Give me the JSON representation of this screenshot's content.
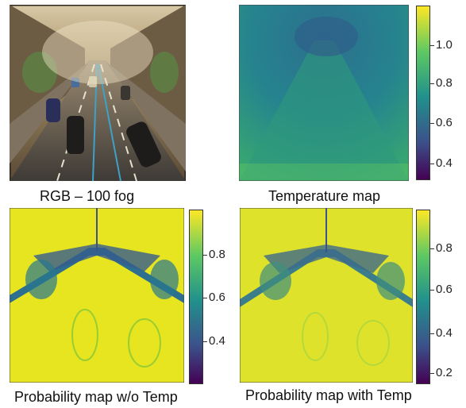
{
  "panels": {
    "rgb": {
      "caption": "RGB – 100 fog"
    },
    "temperature": {
      "caption": "Temperature map",
      "colorbar_ticks": [
        "1.0",
        "0.8",
        "0.6",
        "0.4"
      ]
    },
    "prob_without": {
      "caption": "Probability map w/o Temp",
      "colorbar_ticks": [
        "0.8",
        "0.6",
        "0.4"
      ]
    },
    "prob_with": {
      "caption": "Probability map with Temp",
      "colorbar_ticks": [
        "0.8",
        "0.6",
        "0.4",
        "0.2"
      ]
    }
  },
  "colormap": {
    "low": "#440154",
    "mid": "#21918c",
    "high": "#fde725"
  }
}
